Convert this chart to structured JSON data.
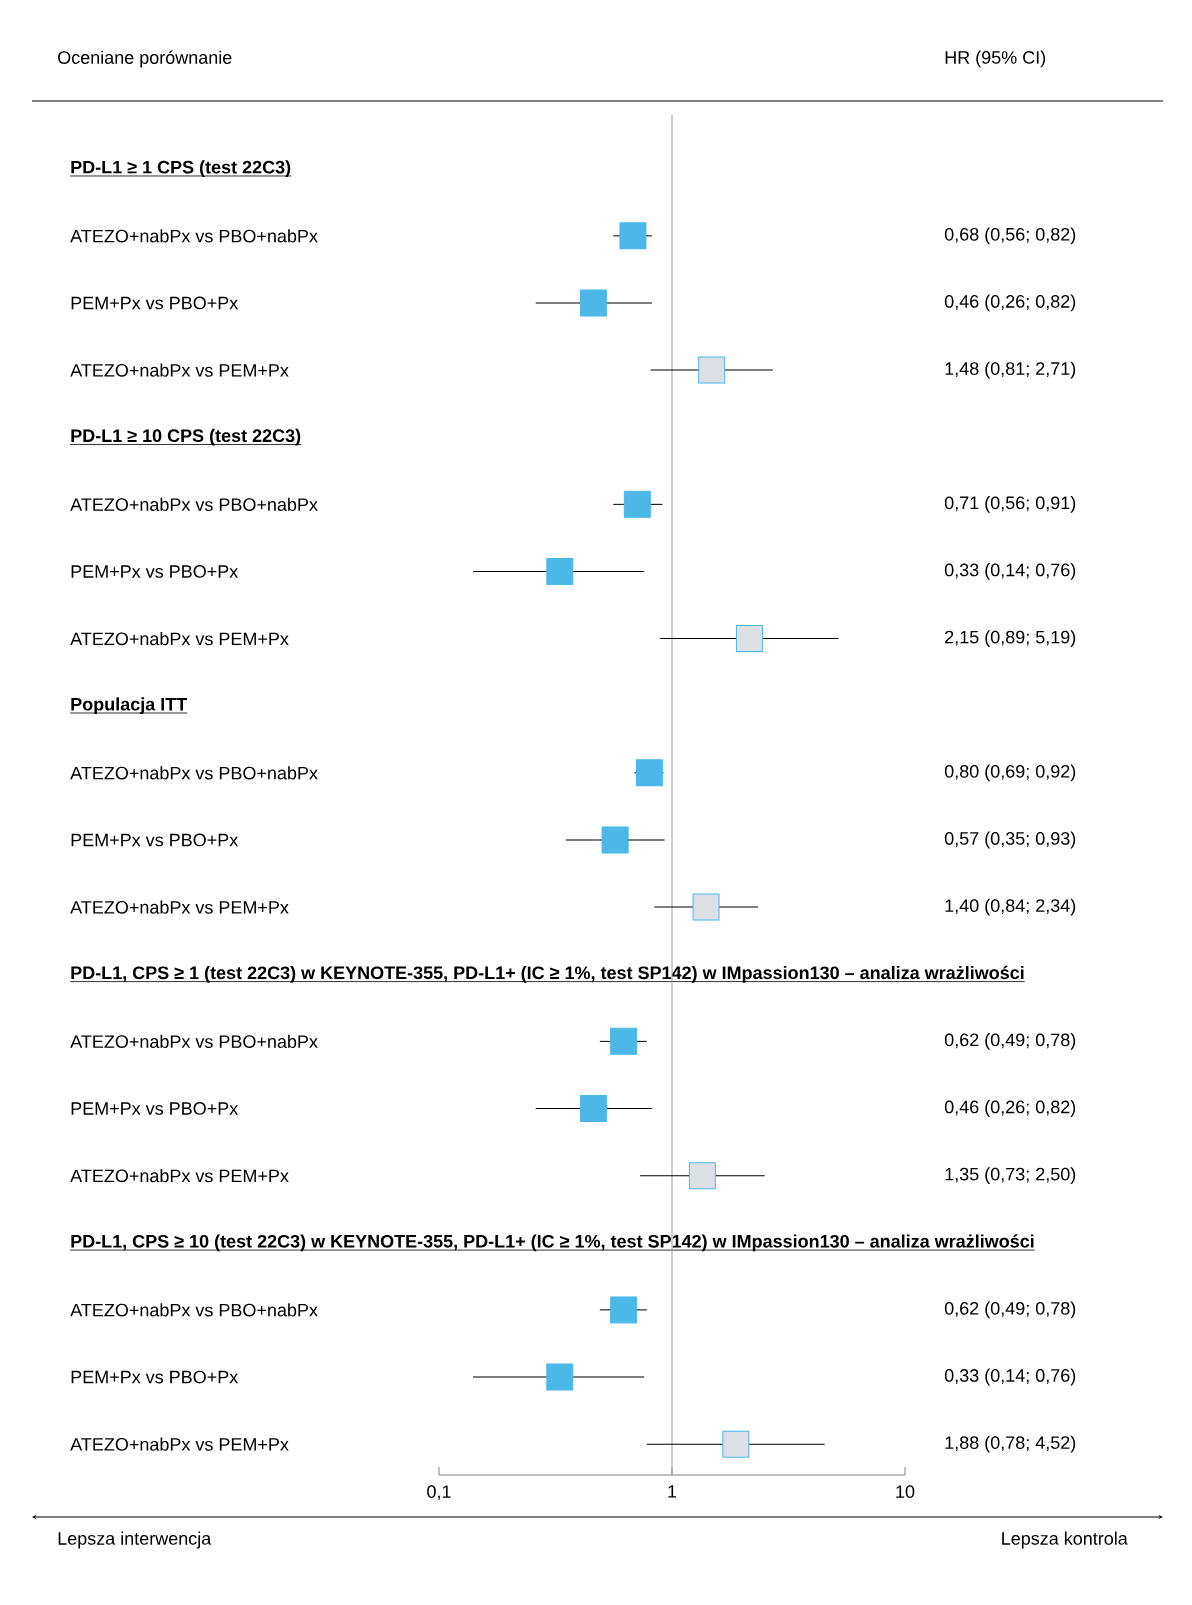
{
  "chart_data": {
    "type": "scatter",
    "orientation": "horizontal",
    "log": "x",
    "marker": "square",
    "categories": [
      "PD-L1 ≥ 1 CPS (test 22C3)",
      "ATEZO+nabPx vs PBO+nabPx",
      "PEM+Px vs PBO+Px",
      "ATEZO+nabPx vs PEM+Px",
      "PD-L1 ≥ 10 CPS (test 22C3)",
      "ATEZO+nabPx vs PBO+nabPx",
      "PEM+Px vs PBO+Px",
      "ATEZO+nabPx vs PEM+Px",
      "Populacja ITT",
      "ATEZO+nabPx vs PBO+nabPx",
      "PEM+Px vs PBO+Px",
      "ATEZO+nabPx vs PEM+Px",
      "PD-L1, CPS ≥ 1 (test 22C3) w KEYNOTE-355, PD-L1+ (IC ≥ 1%, test SP142) w IMpassion130 – analiza wrażliwości",
      "ATEZO+nabPx vs PBO+nabPx",
      "PEM+Px vs PBO+Px",
      "ATEZO+nabPx vs PEM+Px",
      "PD-L1, CPS ≥ 10 (test 22C3) w KEYNOTE-355, PD-L1+ (IC ≥ 1%, test SP142) w IMpassion130 – analiza wrażliwości",
      "ATEZO+nabPx vs PBO+nabPx",
      "PEM+Px vs PBO+Px",
      "ATEZO+nabPx vs PEM+Px"
    ],
    "values": [
      null,
      0.68,
      0.46,
      1.48,
      null,
      0.71,
      0.33,
      2.15,
      null,
      0.8,
      0.57,
      1.4,
      null,
      0.62,
      0.46,
      1.35,
      null,
      0.62,
      0.33,
      1.88
    ],
    "errors": [
      null,
      [
        0.56,
        0.82
      ],
      [
        0.26,
        0.82
      ],
      [
        0.81,
        2.71
      ],
      null,
      [
        0.56,
        0.91
      ],
      [
        0.14,
        0.76
      ],
      [
        0.89,
        5.19
      ],
      null,
      [
        0.69,
        0.92
      ],
      [
        0.35,
        0.93
      ],
      [
        0.84,
        2.34
      ],
      null,
      [
        0.49,
        0.78
      ],
      [
        0.26,
        0.82
      ],
      [
        0.73,
        2.5
      ],
      null,
      [
        0.49,
        0.78
      ],
      [
        0.14,
        0.76
      ],
      [
        0.78,
        4.52
      ]
    ],
    "colors": [
      null,
      "#4bb8e8",
      "#4bb8e8",
      "#dce0e5",
      null,
      "#4bb8e8",
      "#4bb8e8",
      "#dce0e5",
      null,
      "#4bb8e8",
      "#4bb8e8",
      "#dce0e5",
      null,
      "#4bb8e8",
      "#4bb8e8",
      "#dce0e5",
      null,
      "#4bb8e8",
      "#4bb8e8",
      "#dce0e5"
    ],
    "value_labels": [
      null,
      "0,68 (0,56; 0,82)",
      "0,46 (0,26; 0,82)",
      "1,48 (0,81; 2,71)",
      null,
      "0,71 (0,56; 0,91)",
      "0,33 (0,14; 0,76)",
      "2,15 (0,89; 5,19)",
      null,
      "0,80 (0,69; 0,92)",
      "0,57 (0,35; 0,93)",
      "1,40 (0,84; 2,34)",
      null,
      "0,62 (0,49; 0,78)",
      "0,46 (0,26; 0,82)",
      "1,35 (0,73; 2,50)",
      null,
      "0,62 (0,49; 0,78)",
      "0,33 (0,14; 0,76)",
      "1,88 (0,78; 4,52)"
    ],
    "xlim": [
      0.1,
      10
    ],
    "xticks": [
      {
        "value": 0.1,
        "label": "0,1"
      },
      1,
      10
    ],
    "ref_lines": [
      {
        "axis": "x",
        "value": 1,
        "color": "#a0a0a0"
      }
    ],
    "annotations": [
      "Oceniane porównanie",
      "HR (95% CI)",
      "Lepsza interwencja",
      "Lepsza kontrola"
    ]
  }
}
